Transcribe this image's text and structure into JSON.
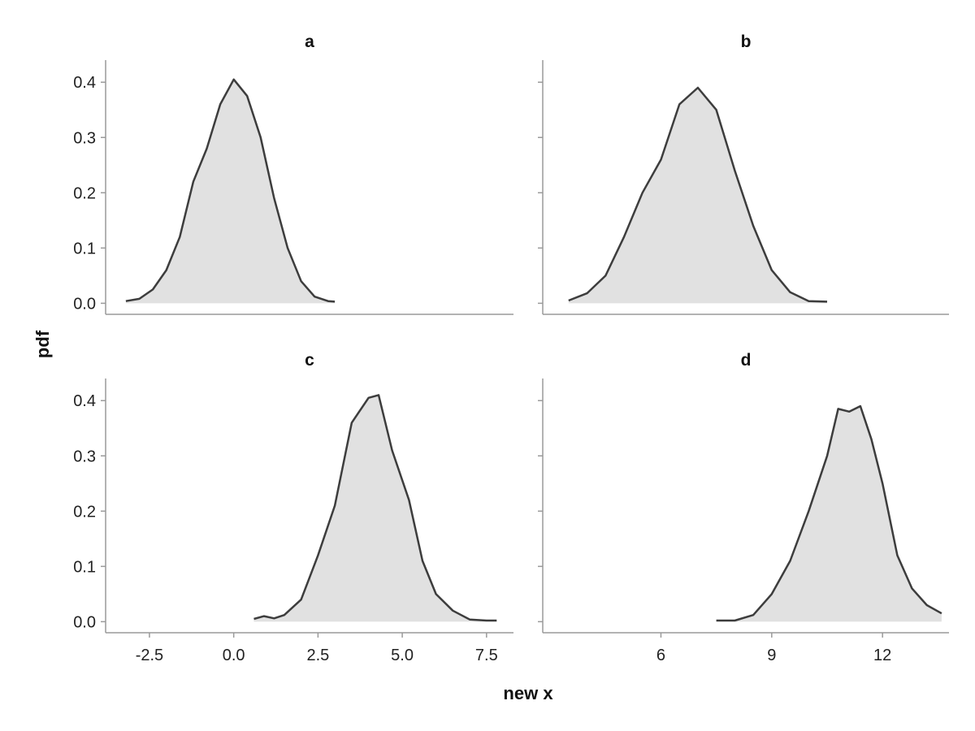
{
  "figure": {
    "xlabel": "new x",
    "ylabel": "pdf"
  },
  "chart_data": [
    {
      "type": "area",
      "title": "a",
      "xlim": [
        -3.8,
        8.3
      ],
      "ylim": [
        -0.02,
        0.44
      ],
      "xticks": [],
      "yticks": [
        0.0,
        0.1,
        0.2,
        0.3,
        0.4
      ],
      "ytick_labels": [
        "0.0",
        "0.1",
        "0.2",
        "0.3",
        "0.4"
      ],
      "x": [
        -3.2,
        -2.8,
        -2.4,
        -2.0,
        -1.6,
        -1.2,
        -0.8,
        -0.4,
        0.0,
        0.4,
        0.8,
        1.2,
        1.6,
        2.0,
        2.4,
        2.8,
        3.0
      ],
      "values": [
        0.004,
        0.008,
        0.025,
        0.06,
        0.12,
        0.22,
        0.28,
        0.36,
        0.405,
        0.375,
        0.3,
        0.19,
        0.1,
        0.04,
        0.012,
        0.004,
        0.003
      ]
    },
    {
      "type": "area",
      "title": "b",
      "xlim": [
        2.8,
        13.8
      ],
      "ylim": [
        -0.02,
        0.44
      ],
      "xticks": [],
      "yticks": [
        0.0,
        0.1,
        0.2,
        0.3,
        0.4
      ],
      "ytick_labels": [],
      "x": [
        3.5,
        4.0,
        4.5,
        5.0,
        5.5,
        6.0,
        6.5,
        7.0,
        7.5,
        8.0,
        8.5,
        9.0,
        9.5,
        10.0,
        10.5
      ],
      "values": [
        0.005,
        0.018,
        0.05,
        0.12,
        0.2,
        0.26,
        0.36,
        0.39,
        0.35,
        0.24,
        0.14,
        0.06,
        0.02,
        0.004,
        0.003
      ]
    },
    {
      "type": "area",
      "title": "c",
      "xlim": [
        -3.8,
        8.3
      ],
      "ylim": [
        -0.02,
        0.44
      ],
      "xticks": [
        -2.5,
        0.0,
        2.5,
        5.0,
        7.5
      ],
      "xtick_labels": [
        "-2.5",
        "0.0",
        "2.5",
        "5.0",
        "7.5"
      ],
      "yticks": [
        0.0,
        0.1,
        0.2,
        0.3,
        0.4
      ],
      "ytick_labels": [
        "0.0",
        "0.1",
        "0.2",
        "0.3",
        "0.4"
      ],
      "x": [
        0.6,
        0.9,
        1.2,
        1.5,
        2.0,
        2.5,
        3.0,
        3.5,
        4.0,
        4.3,
        4.7,
        5.2,
        5.6,
        6.0,
        6.5,
        7.0,
        7.5,
        7.8
      ],
      "values": [
        0.005,
        0.01,
        0.006,
        0.012,
        0.04,
        0.12,
        0.21,
        0.36,
        0.405,
        0.41,
        0.31,
        0.22,
        0.11,
        0.05,
        0.02,
        0.004,
        0.002,
        0.002
      ]
    },
    {
      "type": "area",
      "title": "d",
      "xlim": [
        2.8,
        13.8
      ],
      "ylim": [
        -0.02,
        0.44
      ],
      "xticks": [
        6,
        9,
        12
      ],
      "xtick_labels": [
        "6",
        "9",
        "12"
      ],
      "yticks": [
        0.0,
        0.1,
        0.2,
        0.3,
        0.4
      ],
      "ytick_labels": [],
      "x": [
        7.5,
        8.0,
        8.5,
        9.0,
        9.5,
        10.0,
        10.5,
        10.8,
        11.1,
        11.4,
        11.7,
        12.0,
        12.4,
        12.8,
        13.2,
        13.6
      ],
      "values": [
        0.002,
        0.002,
        0.012,
        0.05,
        0.11,
        0.2,
        0.3,
        0.385,
        0.38,
        0.39,
        0.33,
        0.25,
        0.12,
        0.06,
        0.03,
        0.015
      ]
    }
  ]
}
